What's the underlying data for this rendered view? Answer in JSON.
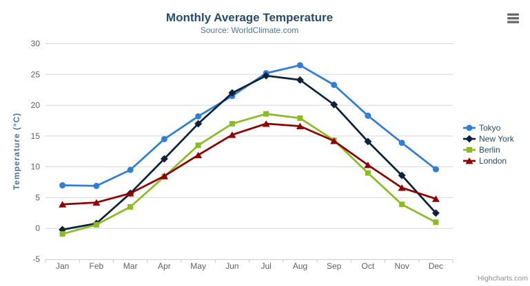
{
  "chart_data": {
    "type": "line",
    "title": "Monthly Average Temperature",
    "subtitle": "Source: WorldClimate.com",
    "categories": [
      "Jan",
      "Feb",
      "Mar",
      "Apr",
      "May",
      "Jun",
      "Jul",
      "Aug",
      "Sep",
      "Oct",
      "Nov",
      "Dec"
    ],
    "series": [
      {
        "name": "Tokyo",
        "color": "#2f7ed8",
        "marker": "circle",
        "values": [
          7.0,
          6.9,
          9.5,
          14.5,
          18.2,
          21.5,
          25.2,
          26.5,
          23.3,
          18.3,
          13.9,
          9.6
        ]
      },
      {
        "name": "New York",
        "color": "#0d233a",
        "marker": "diamond",
        "values": [
          -0.2,
          0.8,
          5.7,
          11.3,
          17.0,
          22.0,
          24.8,
          24.1,
          20.1,
          14.1,
          8.6,
          2.5
        ]
      },
      {
        "name": "Berlin",
        "color": "#8bbc21",
        "marker": "square",
        "values": [
          -0.9,
          0.6,
          3.5,
          8.4,
          13.5,
          17.0,
          18.6,
          17.9,
          14.3,
          9.0,
          3.9,
          1.0
        ]
      },
      {
        "name": "London",
        "color": "#910000",
        "marker": "triangle",
        "values": [
          3.9,
          4.2,
          5.7,
          8.5,
          11.9,
          15.2,
          17.0,
          16.6,
          14.2,
          10.3,
          6.6,
          4.8
        ]
      }
    ],
    "xlabel": "",
    "ylabel": "Temperature (°C)",
    "ylim": [
      -5,
      30
    ],
    "ytick_interval": 5,
    "ytick_labels": [
      "-5",
      "0",
      "5",
      "10",
      "15",
      "20",
      "25",
      "30"
    ],
    "grid": true,
    "legend_position": "right",
    "legend_entries": [
      "Tokyo",
      "New York",
      "Berlin",
      "London"
    ],
    "credit": "Highcharts.com",
    "export_menu_icon": "hamburger-icon",
    "colors": {
      "title": "#274b6d",
      "subtitle": "#4d759e",
      "axis_labels": "#606060",
      "axis_title": "#4d759e",
      "legend_text": "#274b6d",
      "grid_line": "#d8d8d8",
      "axis_line": "#c0d0e0",
      "tick": "#c0d0e0",
      "credit": "#909090",
      "menu_icon": "#666666",
      "background": "#ffffff"
    }
  }
}
